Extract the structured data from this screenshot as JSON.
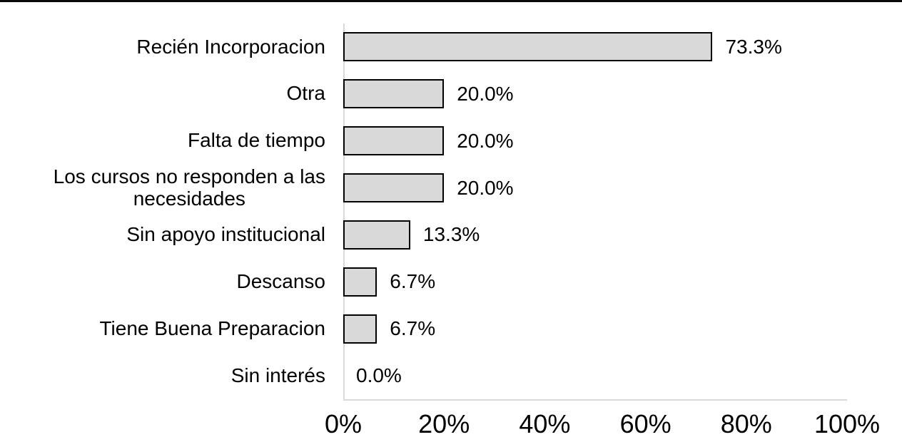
{
  "figure": {
    "background": "#ffffff",
    "top_rule_color": "#0a0a0a"
  },
  "chart_data": {
    "type": "bar",
    "orientation": "horizontal",
    "title": "",
    "xlabel": "",
    "ylabel": "",
    "categories": [
      "Recién Incorporacion",
      "Otra",
      "Falta de tiempo",
      "Los cursos no responden a las\nnecesidades",
      "Sin apoyo institucional",
      "Descanso",
      "Tiene Buena Preparacion",
      "Sin interés"
    ],
    "values": [
      73.3,
      20.0,
      20.0,
      20.0,
      13.3,
      6.7,
      6.7,
      0.0
    ],
    "value_labels": [
      "73.3%",
      "20.0%",
      "20.0%",
      "20.0%",
      "13.3%",
      "6.7%",
      "6.7%",
      "0.0%"
    ],
    "x_ticks": [
      "0%",
      "20%",
      "40%",
      "60%",
      "80%",
      "100%"
    ],
    "x_tick_values": [
      0,
      20,
      40,
      60,
      80,
      100
    ],
    "xlim": [
      0,
      100
    ],
    "grid": false,
    "legend": "none",
    "bar_fill": "#d9d9d9",
    "bar_border": "#000000",
    "axis_line_color": "#d9d9d9",
    "text_color": "#000000"
  }
}
